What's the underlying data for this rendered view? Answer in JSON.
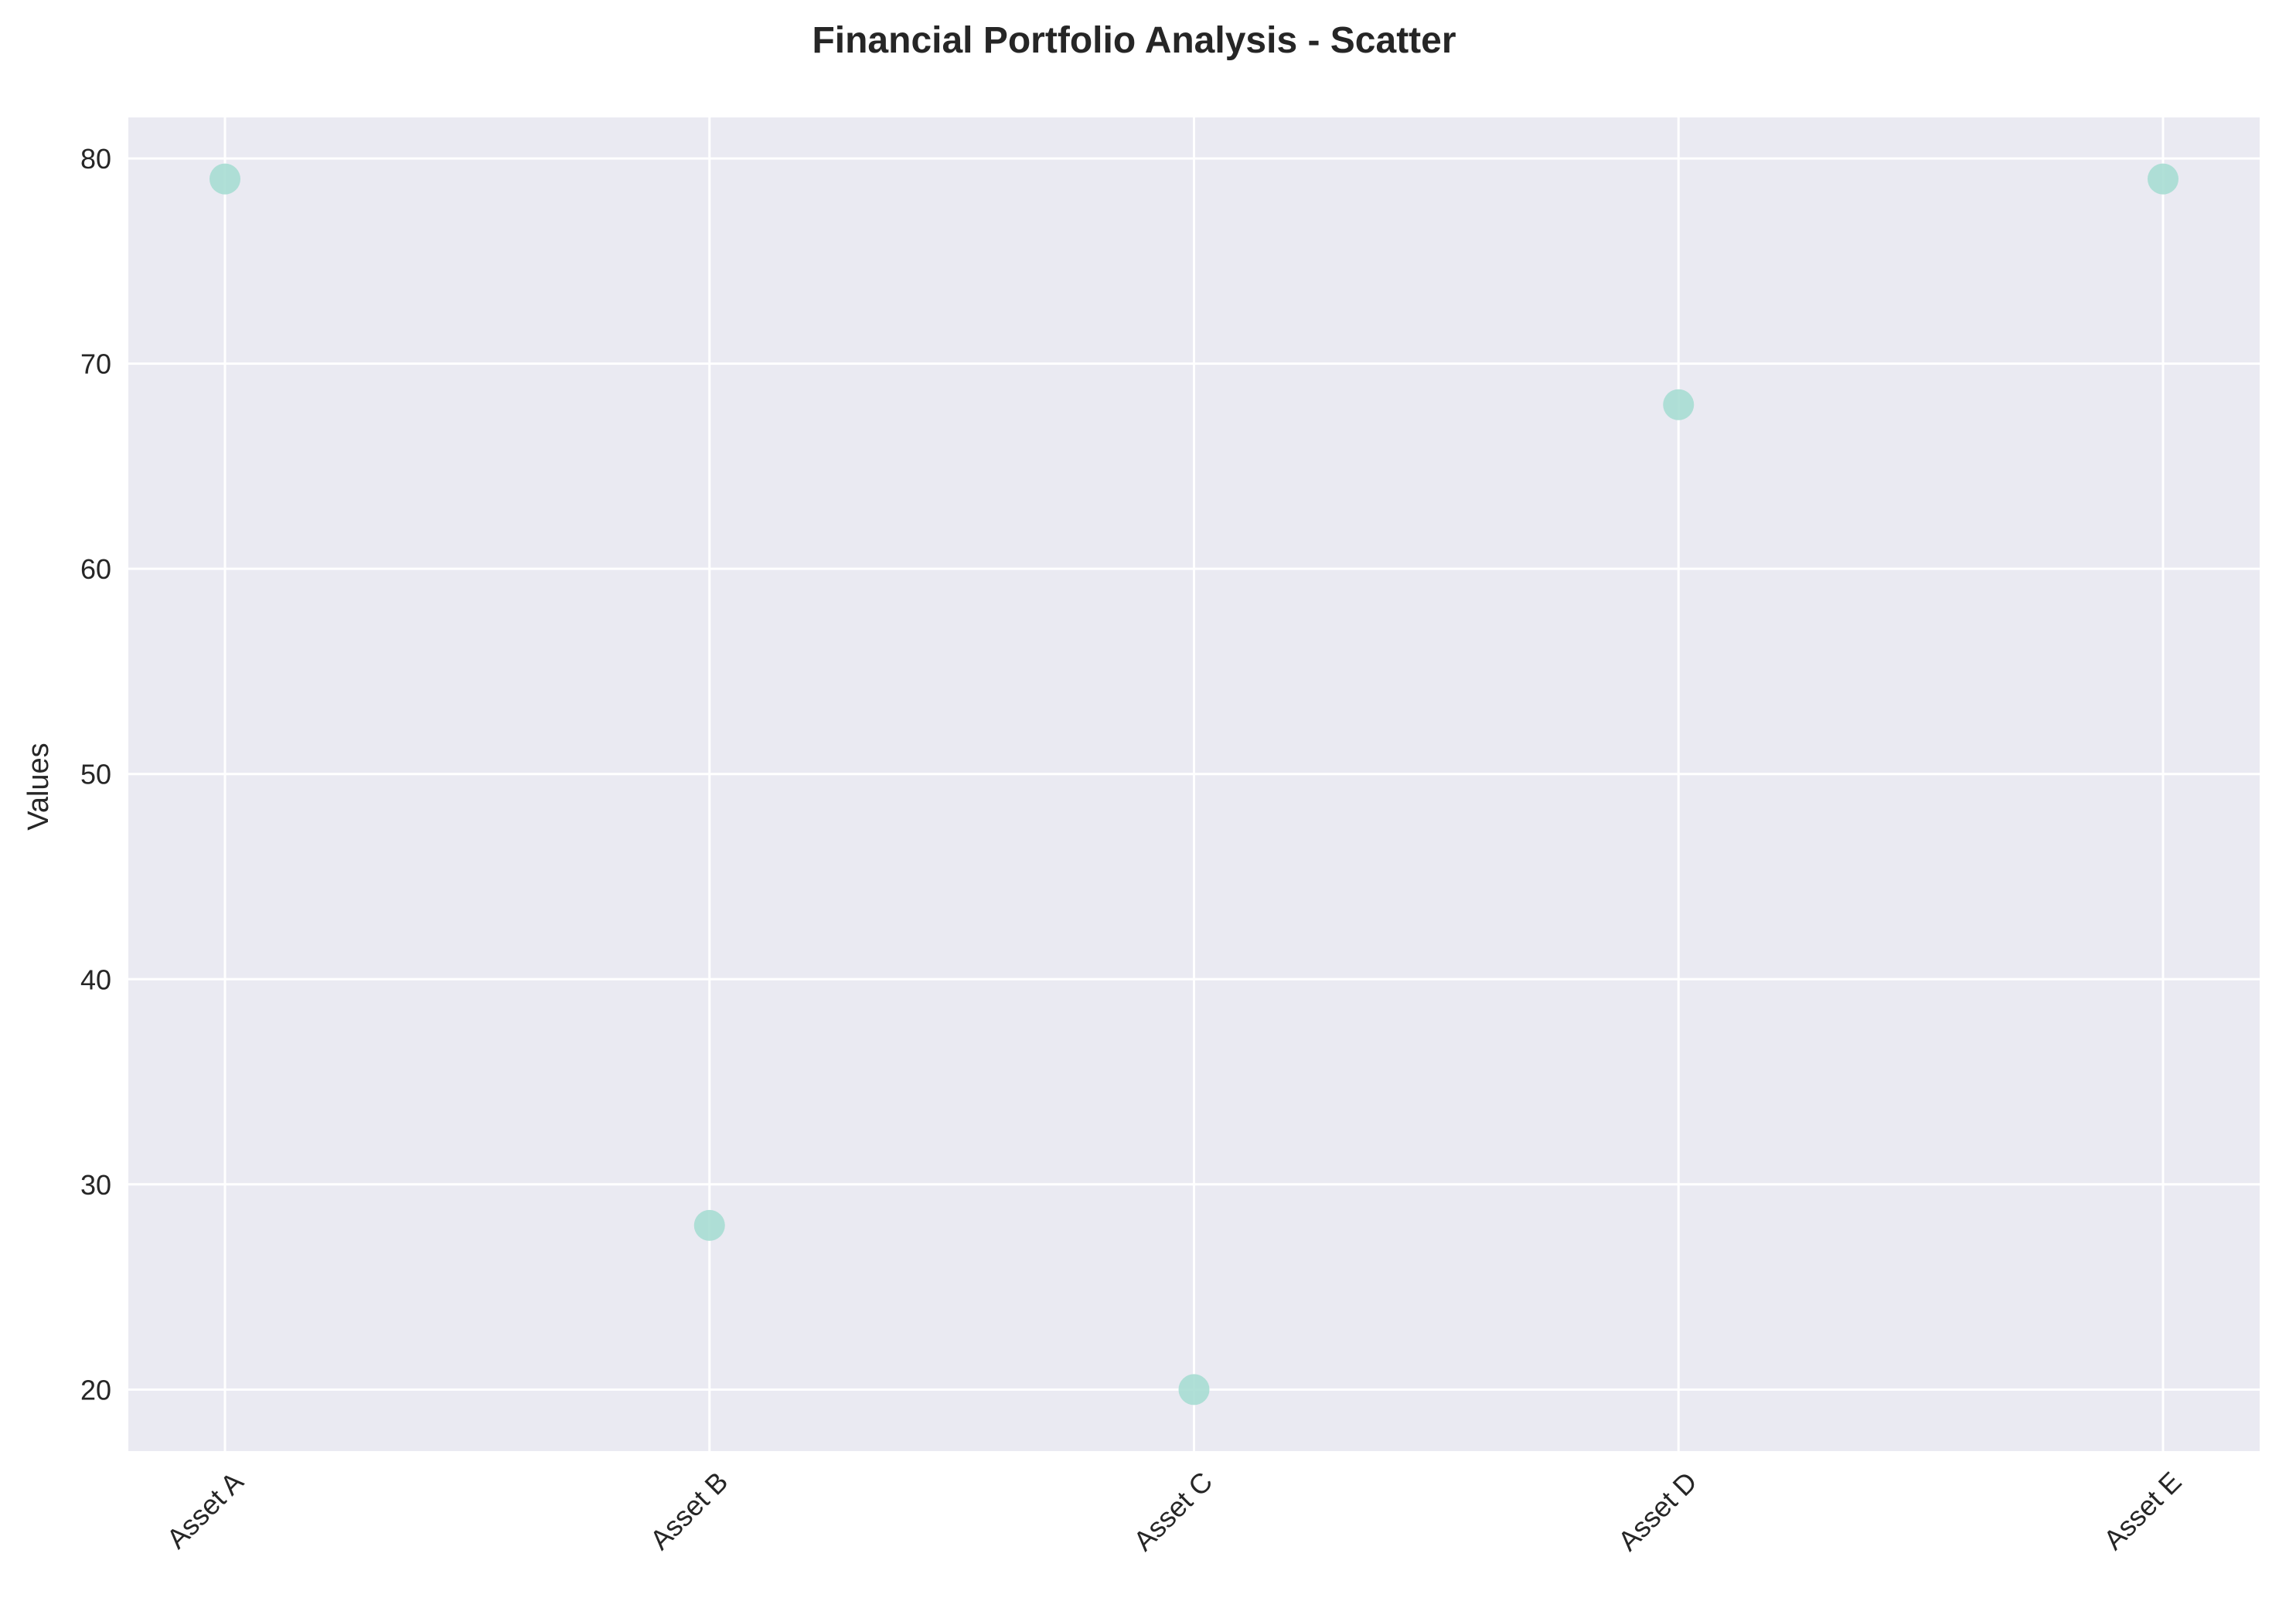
{
  "chart_data": {
    "type": "scatter",
    "title": "Financial Portfolio Analysis - Scatter",
    "xlabel": "",
    "ylabel": "Values",
    "categories": [
      "Asset A",
      "Asset B",
      "Asset C",
      "Asset D",
      "Asset E"
    ],
    "values": [
      79,
      28,
      20,
      68,
      79
    ],
    "ylim": [
      17,
      82
    ],
    "yticks": [
      20,
      30,
      40,
      50,
      60,
      70,
      80
    ],
    "grid": true,
    "legend": "none",
    "colors": {
      "background": "#ffffff",
      "plot_background": "#EAEAF2",
      "grid": "#ffffff",
      "marker": "#A7DDD3",
      "text": "#262626"
    }
  }
}
